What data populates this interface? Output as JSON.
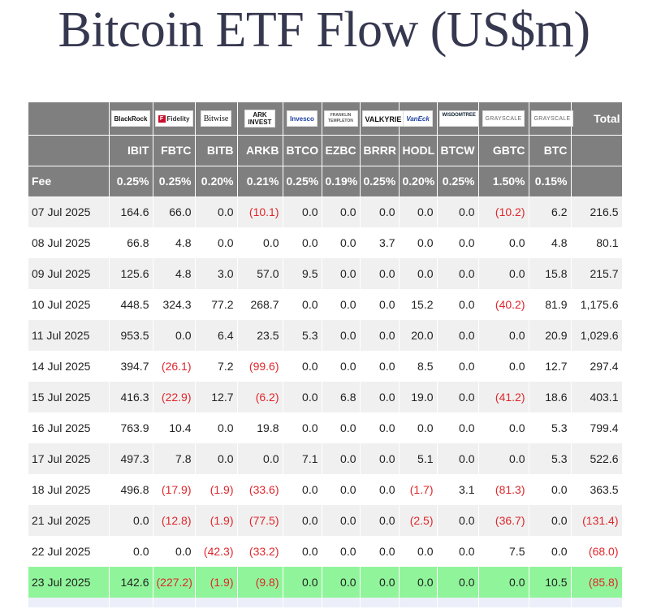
{
  "title": "Bitcoin ETF Flow (US$m)",
  "logos": [
    {
      "name": "blackrock",
      "text": "BlackRock"
    },
    {
      "name": "fidelity",
      "text": "Fidelity"
    },
    {
      "name": "bitwise",
      "text": "Bitwise"
    },
    {
      "name": "ark",
      "text": "ARK INVEST"
    },
    {
      "name": "invesco",
      "text": "Invesco"
    },
    {
      "name": "franklin",
      "text": "FRANKLIN TEMPLETON"
    },
    {
      "name": "valkyrie",
      "text": "VALKYRIE"
    },
    {
      "name": "vaneck",
      "text": "VanEck"
    },
    {
      "name": "wisdomtree",
      "text": "WISDOMTREE"
    },
    {
      "name": "grayscale-1",
      "text": "GRAYSCALE"
    },
    {
      "name": "grayscale-2",
      "text": "GRAYSCALE"
    }
  ],
  "total_label": "Total",
  "tickers": [
    "IBIT",
    "FBTC",
    "BITB",
    "ARKB",
    "BTCO",
    "EZBC",
    "BRRR",
    "HODL",
    "BTCW",
    "GBTC",
    "BTC"
  ],
  "fee_label": "Fee",
  "fees": [
    "0.25%",
    "0.25%",
    "0.20%",
    "0.21%",
    "0.25%",
    "0.19%",
    "0.25%",
    "0.20%",
    "0.25%",
    "1.50%",
    "0.15%"
  ],
  "rows": [
    {
      "date": "07 Jul 2025",
      "values": [
        "164.6",
        "66.0",
        "0.0",
        "(10.1)",
        "0.0",
        "0.0",
        "0.0",
        "0.0",
        "0.0",
        "(10.2)",
        "6.2"
      ],
      "total": "216.5"
    },
    {
      "date": "08 Jul 2025",
      "values": [
        "66.8",
        "4.8",
        "0.0",
        "0.0",
        "0.0",
        "0.0",
        "3.7",
        "0.0",
        "0.0",
        "0.0",
        "4.8"
      ],
      "total": "80.1"
    },
    {
      "date": "09 Jul 2025",
      "values": [
        "125.6",
        "4.8",
        "3.0",
        "57.0",
        "9.5",
        "0.0",
        "0.0",
        "0.0",
        "0.0",
        "0.0",
        "15.8"
      ],
      "total": "215.7"
    },
    {
      "date": "10 Jul 2025",
      "values": [
        "448.5",
        "324.3",
        "77.2",
        "268.7",
        "0.0",
        "0.0",
        "0.0",
        "15.2",
        "0.0",
        "(40.2)",
        "81.9"
      ],
      "total": "1,175.6"
    },
    {
      "date": "11 Jul 2025",
      "values": [
        "953.5",
        "0.0",
        "6.4",
        "23.5",
        "5.3",
        "0.0",
        "0.0",
        "20.0",
        "0.0",
        "0.0",
        "20.9"
      ],
      "total": "1,029.6"
    },
    {
      "date": "14 Jul 2025",
      "values": [
        "394.7",
        "(26.1)",
        "7.2",
        "(99.6)",
        "0.0",
        "0.0",
        "0.0",
        "8.5",
        "0.0",
        "0.0",
        "12.7"
      ],
      "total": "297.4"
    },
    {
      "date": "15 Jul 2025",
      "values": [
        "416.3",
        "(22.9)",
        "12.7",
        "(6.2)",
        "0.0",
        "6.8",
        "0.0",
        "19.0",
        "0.0",
        "(41.2)",
        "18.6"
      ],
      "total": "403.1"
    },
    {
      "date": "16 Jul 2025",
      "values": [
        "763.9",
        "10.4",
        "0.0",
        "19.8",
        "0.0",
        "0.0",
        "0.0",
        "0.0",
        "0.0",
        "0.0",
        "5.3"
      ],
      "total": "799.4"
    },
    {
      "date": "17 Jul 2025",
      "values": [
        "497.3",
        "7.8",
        "0.0",
        "0.0",
        "7.1",
        "0.0",
        "0.0",
        "5.1",
        "0.0",
        "0.0",
        "5.3"
      ],
      "total": "522.6"
    },
    {
      "date": "18 Jul 2025",
      "values": [
        "496.8",
        "(17.9)",
        "(1.9)",
        "(33.6)",
        "0.0",
        "0.0",
        "0.0",
        "(1.7)",
        "3.1",
        "(81.3)",
        "0.0"
      ],
      "total": "363.5"
    },
    {
      "date": "21 Jul 2025",
      "values": [
        "0.0",
        "(12.8)",
        "(1.9)",
        "(77.5)",
        "0.0",
        "0.0",
        "0.0",
        "(2.5)",
        "0.0",
        "(36.7)",
        "0.0"
      ],
      "total": "(131.4)"
    },
    {
      "date": "22 Jul 2025",
      "values": [
        "0.0",
        "0.0",
        "(42.3)",
        "(33.2)",
        "0.0",
        "0.0",
        "0.0",
        "0.0",
        "0.0",
        "7.5",
        "0.0"
      ],
      "total": "(68.0)"
    },
    {
      "date": "23 Jul 2025",
      "values": [
        "142.6",
        "(227.2)",
        "(1.9)",
        "(9.8)",
        "0.0",
        "0.0",
        "0.0",
        "0.0",
        "0.0",
        "0.0",
        "10.5"
      ],
      "total": "(85.8)",
      "highlight": true
    }
  ],
  "colors": {
    "header_bg": "#7f7f7f",
    "negative": "#e0262b",
    "highlight_row": "#90f59a",
    "stripe": "#f0f0f0",
    "title": "#363850"
  }
}
